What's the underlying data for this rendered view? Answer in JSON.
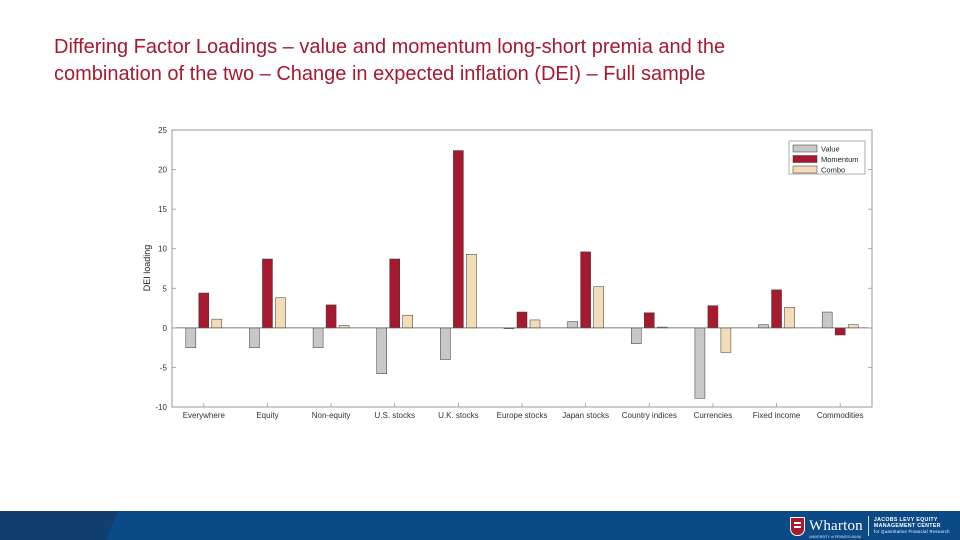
{
  "slide": {
    "title_line1": "Differing Factor Loadings – value and momentum long-short premia and the",
    "title_line2": "combination of the two – Change in expected inflation (DEI) – Full sample"
  },
  "chart_data": {
    "type": "bar",
    "title": "",
    "xlabel": "",
    "ylabel": "DEI loading",
    "ylim": [
      -10,
      25
    ],
    "yticks": [
      25,
      20,
      15,
      10,
      5,
      0,
      -5,
      -10
    ],
    "grid": false,
    "legend_position": "top-right",
    "categories": [
      "Everywhere",
      "Equity",
      "Non-equity",
      "U.S. stocks",
      "U.K. stocks",
      "Europe stocks",
      "Japan stocks",
      "Country indices",
      "Currencies",
      "Fixed income",
      "Commodities"
    ],
    "series": [
      {
        "name": "Value",
        "color": "#c8c8c8",
        "values": [
          -2.5,
          -2.5,
          -2.5,
          -5.8,
          -4.0,
          -0.1,
          0.8,
          -2.0,
          -8.9,
          0.4,
          2.0
        ]
      },
      {
        "name": "Momentum",
        "color": "#a6192e",
        "values": [
          4.4,
          8.7,
          2.9,
          8.7,
          22.4,
          2.0,
          9.6,
          1.9,
          2.8,
          4.8,
          -0.9
        ]
      },
      {
        "name": "Combo",
        "color": "#f3dcb8",
        "values": [
          1.1,
          3.8,
          0.3,
          1.6,
          9.3,
          1.0,
          5.2,
          0.1,
          -3.1,
          2.6,
          0.4
        ]
      }
    ]
  },
  "footer": {
    "logo_word": "Wharton",
    "logo_sub": "UNIVERSITY of PENNSYLVANIA",
    "center_line1": "JACOBS LEVY EQUITY",
    "center_line2": "MANAGEMENT CENTER",
    "center_line3": "for Quantitative Financial Research",
    "accent_color": "#0b4a87"
  }
}
